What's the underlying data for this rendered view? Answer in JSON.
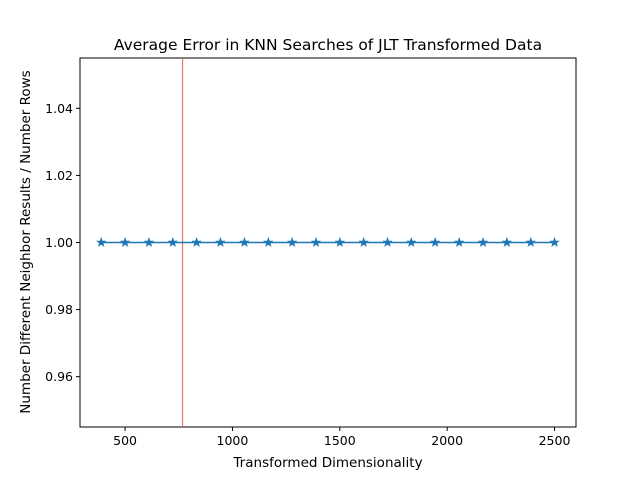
{
  "chart_data": {
    "type": "line",
    "title": "Average Error in KNN Searches of JLT Transformed Data",
    "xlabel": "Transformed Dimensionality",
    "ylabel": "Number Different Neighbor Results / Number Rows",
    "xlim": [
      290,
      2600
    ],
    "ylim": [
      0.945,
      1.055
    ],
    "xticks": [
      500,
      1000,
      1500,
      2000,
      2500
    ],
    "xtick_labels": [
      "500",
      "1000",
      "1500",
      "2000",
      "2500"
    ],
    "yticks": [
      0.96,
      0.98,
      1.0,
      1.02,
      1.04
    ],
    "ytick_labels": [
      "0.96",
      "0.98",
      "1.00",
      "1.02",
      "1.04"
    ],
    "grid": false,
    "series": [
      {
        "marker": "star",
        "color": "#1f77b4",
        "x": [
          389,
          500,
          611,
          722,
          833,
          944,
          1056,
          1167,
          1278,
          1389,
          1500,
          1611,
          1722,
          1833,
          1944,
          2056,
          2167,
          2278,
          2389,
          2500
        ],
        "y": [
          1.0,
          1.0,
          1.0,
          1.0,
          1.0,
          1.0,
          1.0,
          1.0,
          1.0,
          1.0,
          1.0,
          1.0,
          1.0,
          1.0,
          1.0,
          1.0,
          1.0,
          1.0,
          1.0,
          1.0
        ]
      }
    ],
    "vline": {
      "x": 768,
      "color": "#e8604c"
    }
  }
}
